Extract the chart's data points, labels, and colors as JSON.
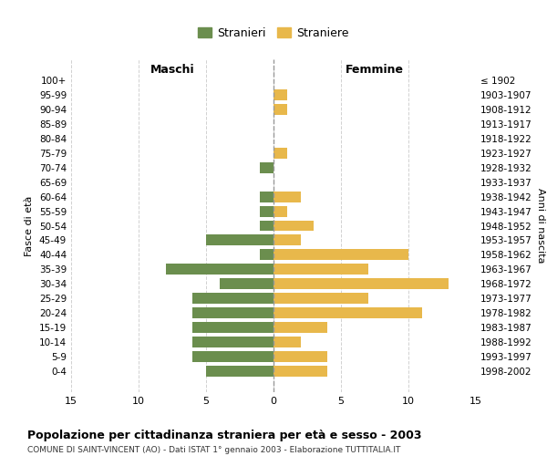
{
  "age_groups": [
    "100+",
    "95-99",
    "90-94",
    "85-89",
    "80-84",
    "75-79",
    "70-74",
    "65-69",
    "60-64",
    "55-59",
    "50-54",
    "45-49",
    "40-44",
    "35-39",
    "30-34",
    "25-29",
    "20-24",
    "15-19",
    "10-14",
    "5-9",
    "0-4"
  ],
  "birth_years": [
    "≤ 1902",
    "1903-1907",
    "1908-1912",
    "1913-1917",
    "1918-1922",
    "1923-1927",
    "1928-1932",
    "1933-1937",
    "1938-1942",
    "1943-1947",
    "1948-1952",
    "1953-1957",
    "1958-1962",
    "1963-1967",
    "1968-1972",
    "1973-1977",
    "1978-1982",
    "1983-1987",
    "1988-1992",
    "1993-1997",
    "1998-2002"
  ],
  "maschi": [
    0,
    0,
    0,
    0,
    0,
    0,
    1,
    0,
    1,
    1,
    1,
    5,
    1,
    8,
    4,
    6,
    6,
    6,
    6,
    6,
    5
  ],
  "femmine": [
    0,
    1,
    1,
    0,
    0,
    1,
    0,
    0,
    2,
    1,
    3,
    2,
    10,
    7,
    13,
    7,
    11,
    4,
    2,
    4,
    4
  ],
  "color_maschi": "#6b8e4e",
  "color_femmine": "#e8b84b",
  "title": "Popolazione per cittadinanza straniera per età e sesso - 2003",
  "subtitle": "COMUNE DI SAINT-VINCENT (AO) - Dati ISTAT 1° gennaio 2003 - Elaborazione TUTTITALIA.IT",
  "xlabel_left": "Maschi",
  "xlabel_right": "Femmine",
  "ylabel_left": "Fasce di età",
  "ylabel_right": "Anni di nascita",
  "legend_maschi": "Stranieri",
  "legend_femmine": "Straniere",
  "xlim": 15,
  "background_color": "#ffffff",
  "grid_color": "#cccccc"
}
